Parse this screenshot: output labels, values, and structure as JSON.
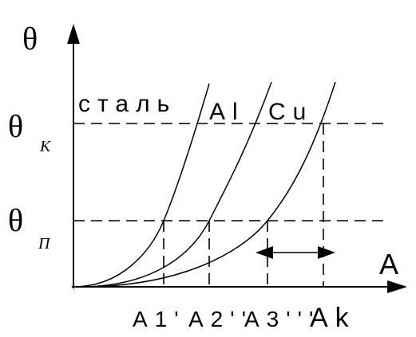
{
  "axes": {
    "y_label": "θ",
    "x_label": "A"
  },
  "levels": [
    {
      "symbol": "θ",
      "subscript": "К"
    },
    {
      "symbol": "θ",
      "subscript": "П"
    }
  ],
  "curves": [
    {
      "label": "сталь"
    },
    {
      "label": "Al"
    },
    {
      "label": "Cu"
    }
  ],
  "x_labels": [
    "A1'",
    "A2''",
    "A3'''",
    "Ak"
  ]
}
